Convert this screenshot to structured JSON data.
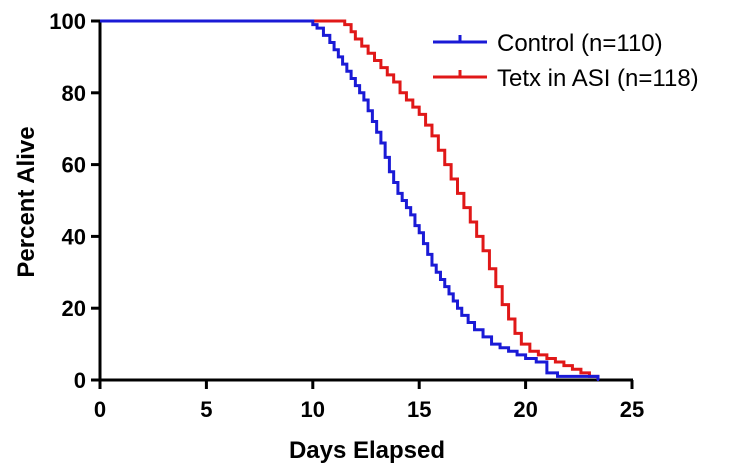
{
  "chart_data": {
    "type": "line",
    "xlabel": "Days Elapsed",
    "ylabel": "Percent Alive",
    "xlim": [
      0,
      25
    ],
    "ylim": [
      0,
      100
    ],
    "xticks": [
      "0",
      "5",
      "10",
      "15",
      "20",
      "25"
    ],
    "yticks": [
      "0",
      "20",
      "40",
      "60",
      "80",
      "100"
    ],
    "grid": false,
    "legend_position": "top-right",
    "step": true,
    "series": [
      {
        "name": "Control (n=110)",
        "color": "#1a1ad6",
        "x": [
          0,
          10,
          10.2,
          10.5,
          10.8,
          11.0,
          11.2,
          11.4,
          11.6,
          11.8,
          12.0,
          12.2,
          12.4,
          12.6,
          12.8,
          13.0,
          13.2,
          13.4,
          13.6,
          13.8,
          14.0,
          14.2,
          14.4,
          14.6,
          14.8,
          15.0,
          15.2,
          15.4,
          15.6,
          15.8,
          16.0,
          16.2,
          16.4,
          16.6,
          16.8,
          17.0,
          17.3,
          17.6,
          18.0,
          18.4,
          18.8,
          19.2,
          19.6,
          20.0,
          20.5,
          21.0,
          21.5,
          22.0,
          22.5,
          23.0,
          23.4
        ],
        "y": [
          100,
          99,
          98,
          96,
          94,
          92,
          90,
          88,
          86,
          84,
          82,
          80,
          78,
          75,
          72,
          69,
          66,
          62,
          58,
          55,
          52,
          50,
          48,
          46,
          43,
          41,
          38,
          35,
          32,
          30,
          28,
          26,
          24,
          22,
          20,
          18,
          16,
          14,
          12,
          10,
          9,
          8,
          7,
          6,
          5,
          2,
          1,
          1,
          1,
          1,
          0
        ]
      },
      {
        "name": "Tetx in ASI (n=118)",
        "color": "#e01818",
        "x": [
          0,
          11.5,
          11.8,
          12.0,
          12.3,
          12.6,
          12.9,
          13.2,
          13.5,
          13.8,
          14.1,
          14.4,
          14.7,
          15.0,
          15.3,
          15.6,
          15.9,
          16.2,
          16.5,
          16.8,
          17.1,
          17.4,
          17.7,
          18.0,
          18.3,
          18.6,
          18.9,
          19.2,
          19.5,
          19.8,
          20.2,
          20.6,
          21.0,
          21.4,
          21.8,
          22.2,
          22.6,
          23.0,
          23.4
        ],
        "y": [
          100,
          99,
          97,
          95,
          93,
          91,
          89,
          87,
          85,
          83,
          80,
          78,
          76,
          74,
          71,
          68,
          64,
          60,
          56,
          52,
          48,
          44,
          40,
          36,
          31,
          26,
          21,
          17,
          13,
          10,
          8,
          7,
          6,
          5,
          4,
          3,
          2,
          1,
          0
        ]
      }
    ]
  }
}
